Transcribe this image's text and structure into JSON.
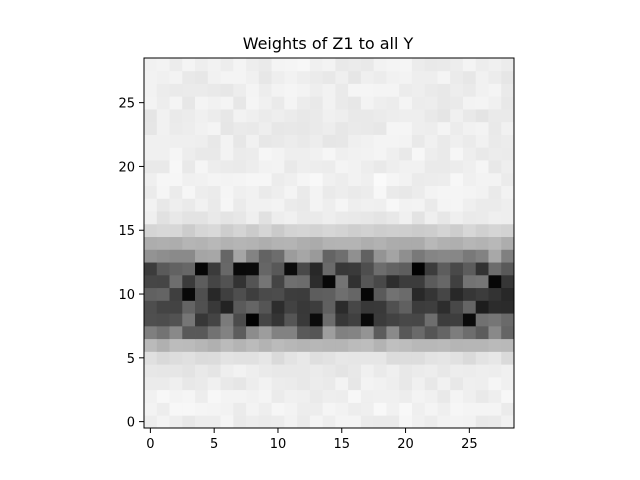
{
  "chart_data": {
    "type": "heatmap",
    "title": "Weights of Z1 to all Y",
    "xlabel": "",
    "ylabel": "",
    "colormap": "gray_r",
    "origin": "lower",
    "n_cols": 29,
    "n_rows": 29,
    "xlim": [
      -0.5,
      28.5
    ],
    "ylim": [
      -0.5,
      28.5
    ],
    "x_ticks": [
      0,
      5,
      10,
      15,
      20,
      25
    ],
    "x_tick_labels": [
      "0",
      "5",
      "10",
      "15",
      "20",
      "25"
    ],
    "y_ticks": [
      0,
      5,
      10,
      15,
      20,
      25
    ],
    "y_tick_labels": [
      "0",
      "5",
      "10",
      "15",
      "20",
      "25"
    ],
    "grid": false,
    "legend": "none",
    "row_profile_note_free": true,
    "row_intensity": [
      0.06,
      0.05,
      0.06,
      0.07,
      0.08,
      0.12,
      0.28,
      0.52,
      0.66,
      0.74,
      0.7,
      0.68,
      0.72,
      0.48,
      0.3,
      0.18,
      0.09,
      0.06,
      0.06,
      0.05,
      0.06,
      0.06,
      0.07,
      0.07,
      0.08,
      0.07,
      0.07,
      0.07,
      0.06
    ],
    "dark_spots": [
      [
        4,
        12
      ],
      [
        7,
        12
      ],
      [
        8,
        12
      ],
      [
        11,
        12
      ],
      [
        14,
        11
      ],
      [
        17,
        10
      ],
      [
        21,
        12
      ],
      [
        27,
        11
      ],
      [
        8,
        8
      ],
      [
        13,
        8
      ],
      [
        17,
        8
      ],
      [
        3,
        10
      ],
      [
        25,
        8
      ]
    ]
  }
}
